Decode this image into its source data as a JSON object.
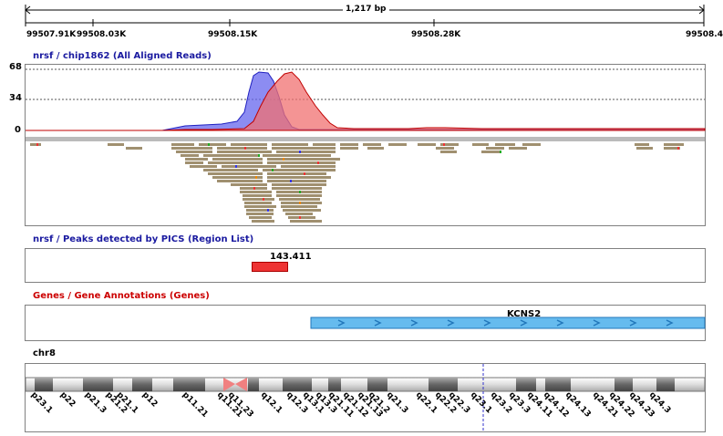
{
  "ruler": {
    "span_label": "1,217 bp",
    "tick_labels": [
      "99507.91K",
      "99508.03K",
      "99508.15K",
      "99508.28K",
      "99508.4"
    ]
  },
  "tracks": {
    "reads": {
      "title": "nrsf / chip1862 (All Aligned Reads)",
      "title_color": "#1a1aa0",
      "y_labels": [
        "68",
        "34",
        "0"
      ],
      "blue_color": "#6666ee",
      "red_color": "#f07070"
    },
    "peaks": {
      "title": "nrsf / Peaks detected by PICS (Region List)",
      "title_color": "#1a1aa0",
      "peak_label": "143.411",
      "peak_color": "#ee3333"
    },
    "genes": {
      "title": "Genes / Gene Annotations (Genes)",
      "title_color": "#cc0000",
      "gene_label": "KCNS2",
      "gene_color": "#66bbee"
    },
    "chromosome": {
      "title": "chr8",
      "bands": [
        "p23.1",
        "p22",
        "p21.3",
        "p21.2",
        "p21.1",
        "p12",
        "p11.21",
        "q11.21",
        "q11.23",
        "q12.1",
        "q12.3",
        "q13.1",
        "q13.3",
        "q21.11",
        "q21.12",
        "q21.13",
        "q21.2",
        "q21.3",
        "q22.1",
        "q22.2",
        "q22.3",
        "q23.1",
        "q23.2",
        "q23.3",
        "q24.11",
        "q24.12",
        "q24.13",
        "q24.21",
        "q24.22",
        "q24.23",
        "q24.3"
      ]
    }
  }
}
